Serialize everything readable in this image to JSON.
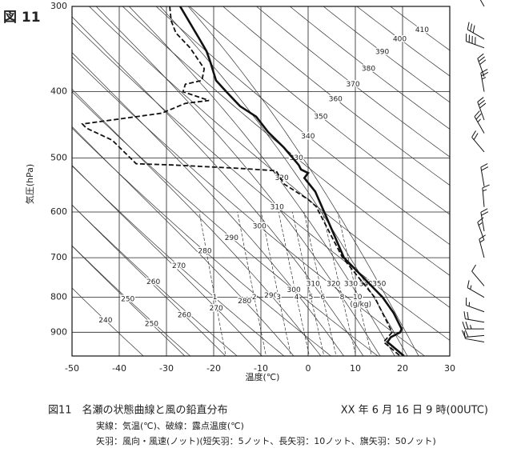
{
  "chart_data": {
    "type": "emagram",
    "figure_label": "図 11",
    "title": "図11　名瀬の状態曲線と風の鉛直分布",
    "date": "XX 年 6 月 16 日 9 時(00UTC)",
    "notes": [
      "実線：気温(℃)、破線：露点温度(℃)",
      "矢羽：風向・風速(ノット)(短矢羽：5ノット、長矢羽：10ノット、旗矢羽：50ノット)"
    ],
    "x_label": "温度(℃)",
    "y_label": "気圧(hPa)",
    "xlim": [
      -50,
      30
    ],
    "xticks": [
      -50,
      -40,
      -30,
      -20,
      -10,
      0,
      10,
      20,
      30
    ],
    "ylim": [
      975,
      300
    ],
    "yticks": [
      300,
      400,
      500,
      600,
      700,
      800,
      900
    ],
    "log_y": true,
    "grid": true,
    "dry_adiabats": [
      240,
      250,
      260,
      270,
      280,
      290,
      300,
      310,
      320,
      330,
      340,
      350,
      360,
      370,
      380,
      390,
      400,
      410
    ],
    "moist_adiabats": [
      250,
      260,
      270,
      280,
      290,
      300,
      310,
      320,
      330,
      340,
      350
    ],
    "mixing_ratios": [
      1,
      2,
      3,
      4,
      5,
      6,
      8,
      10
    ],
    "mixing_ratio_unit": "(g/kg)",
    "series": [
      {
        "color": "#111",
        "dash": false,
        "pressure": [
          300,
          335,
          349,
          362,
          385,
          400,
          420,
          435,
          458,
          483,
          512,
          520,
          526,
          535,
          560,
          600,
          700,
          800,
          843,
          890,
          900,
          915,
          930,
          975
        ],
        "temperature": [
          -27.1,
          -23,
          -21.5,
          -20.7,
          -19.5,
          -17.3,
          -14.4,
          -11,
          -8.5,
          -5.1,
          -2,
          -1.5,
          0,
          -0.8,
          1.5,
          3.4,
          7.6,
          15.8,
          18.1,
          19.8,
          19.5,
          17.5,
          16.8,
          20.3
        ]
      },
      {
        "color": "#111",
        "dash": true,
        "pressure": [
          300,
          315,
          328,
          345,
          370,
          385,
          390,
          400,
          412,
          416,
          430,
          446,
          452,
          471,
          510,
          512,
          518,
          522,
          546,
          575,
          589,
          700,
          800,
          900,
          930,
          975
        ],
        "temperature": [
          -29.3,
          -29,
          -28,
          -25,
          -22,
          -22.5,
          -26,
          -26.5,
          -21,
          -26,
          -31,
          -47.8,
          -47,
          -41.5,
          -36.4,
          -28.8,
          -14.4,
          -6.8,
          -5.1,
          0,
          1.7,
          7.3,
          14.1,
          17.8,
          16,
          19.5
        ]
      }
    ],
    "wind": {
      "pressure": [
        300,
        335,
        345,
        380,
        400,
        440,
        460,
        490,
        550,
        590,
        640,
        660,
        700,
        770,
        800,
        840,
        870,
        890,
        910,
        930
      ],
      "direction": [
        330,
        300,
        290,
        340,
        350,
        340,
        330,
        320,
        350,
        355,
        350,
        340,
        345,
        320,
        300,
        290,
        280,
        270,
        265,
        280
      ],
      "speed": [
        20,
        30,
        40,
        30,
        25,
        30,
        25,
        20,
        20,
        15,
        20,
        15,
        15,
        10,
        15,
        15,
        20,
        25,
        20,
        10
      ]
    }
  }
}
